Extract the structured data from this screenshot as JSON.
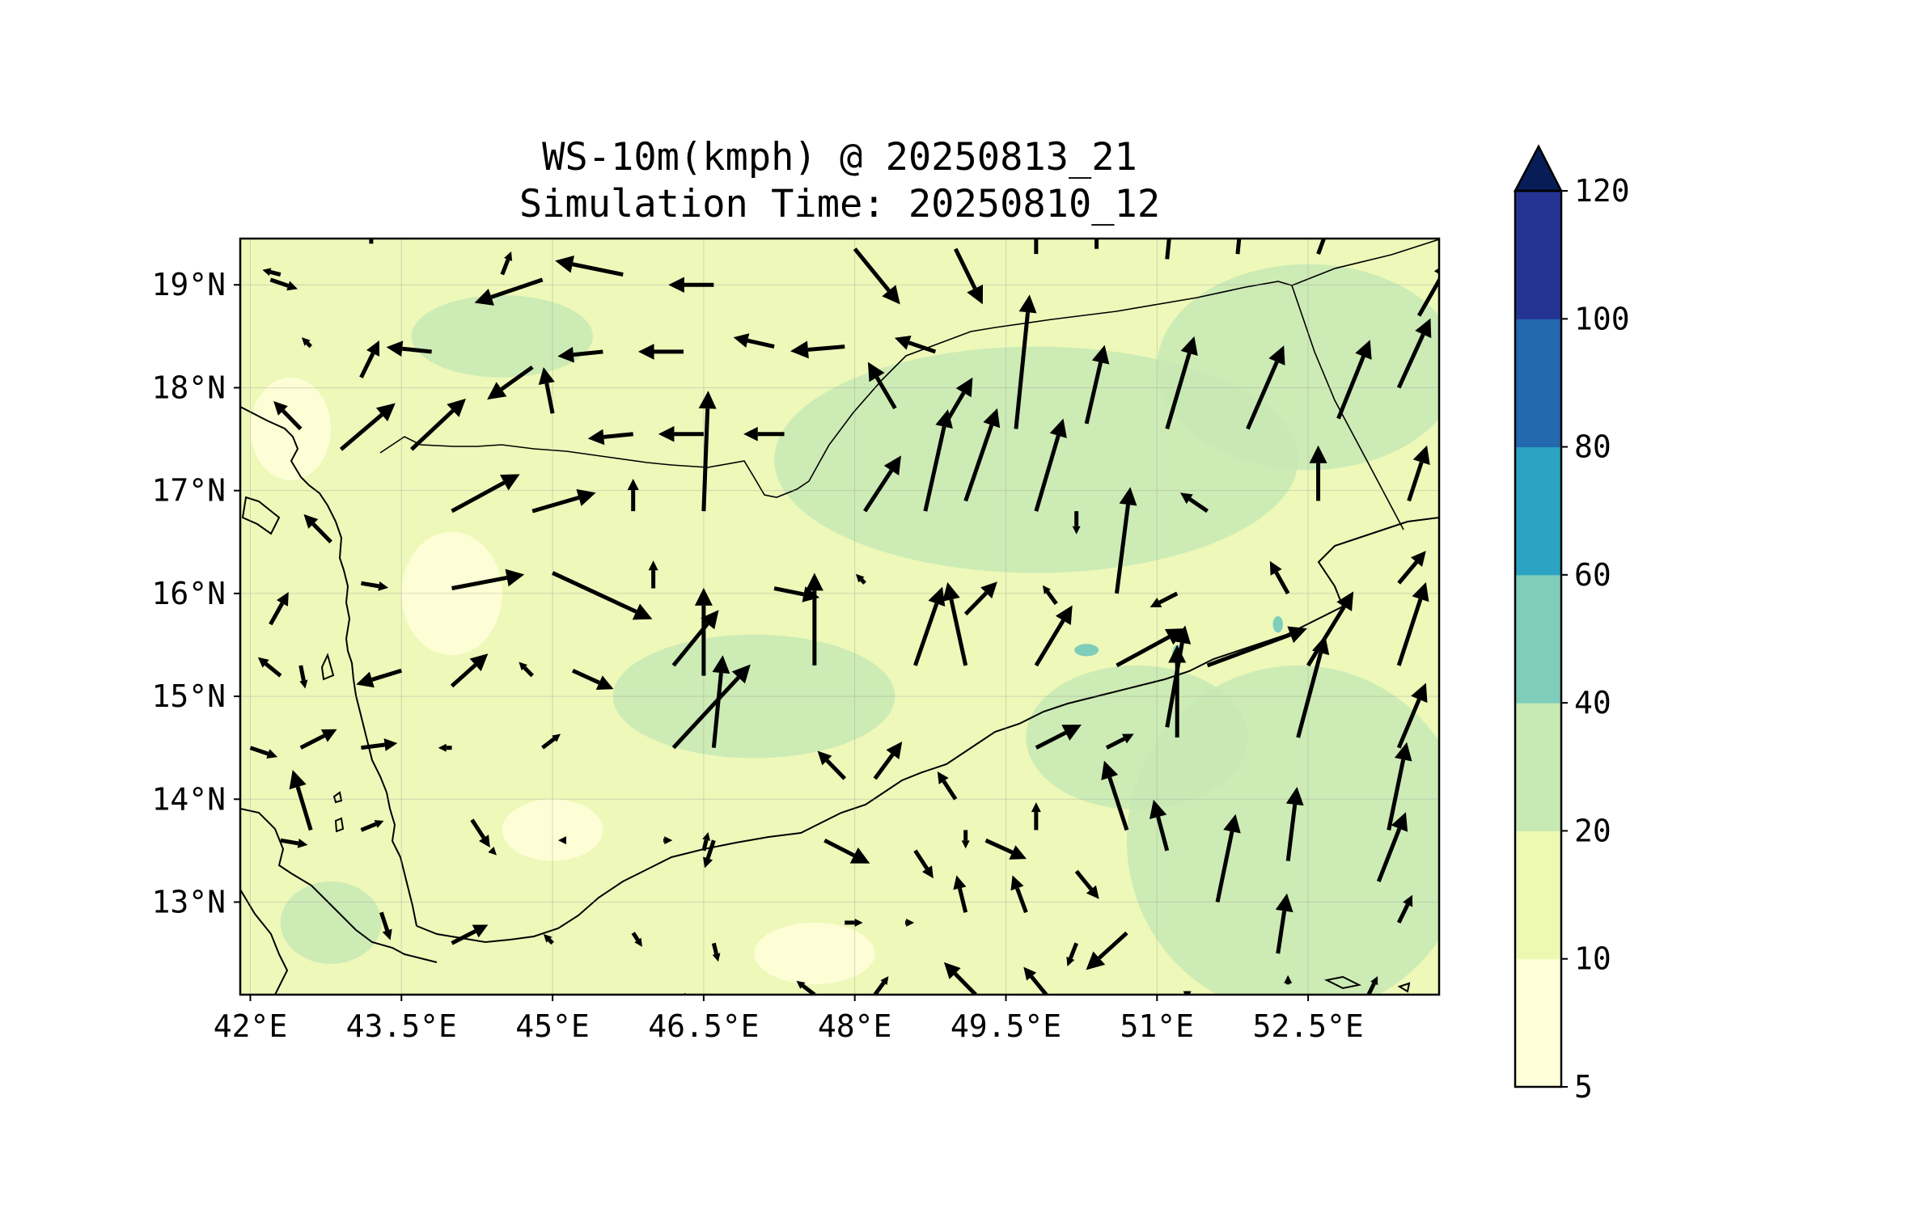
{
  "title": {
    "line1": "WS-10m(kmph) @ 20250813_21",
    "line2": "Simulation Time: 20250810_12"
  },
  "map": {
    "lon_range": [
      41.9,
      53.8
    ],
    "lat_range": [
      12.1,
      19.45
    ],
    "x_ticks": [
      {
        "value": 42.0,
        "label": "42°E"
      },
      {
        "value": 43.5,
        "label": "43.5°E"
      },
      {
        "value": 45.0,
        "label": "45°E"
      },
      {
        "value": 46.5,
        "label": "46.5°E"
      },
      {
        "value": 48.0,
        "label": "48°E"
      },
      {
        "value": 49.5,
        "label": "49.5°E"
      },
      {
        "value": 51.0,
        "label": "51°E"
      },
      {
        "value": 52.5,
        "label": "52.5°E"
      }
    ],
    "y_ticks": [
      {
        "value": 19,
        "label": "19°N"
      },
      {
        "value": 18,
        "label": "18°N"
      },
      {
        "value": 17,
        "label": "17°N"
      },
      {
        "value": 16,
        "label": "16°N"
      },
      {
        "value": 15,
        "label": "15°N"
      },
      {
        "value": 14,
        "label": "14°N"
      },
      {
        "value": 13,
        "label": "13°N"
      }
    ],
    "grid": true,
    "land_base_color": "#edf8b9",
    "wind_zones": [
      {
        "lon": 49.8,
        "lat": 17.3,
        "rx": 2.6,
        "ry": 1.1,
        "level": 2
      },
      {
        "lon": 52.5,
        "lat": 18.2,
        "rx": 1.5,
        "ry": 1.0,
        "level": 2
      },
      {
        "lon": 52.4,
        "lat": 13.6,
        "rx": 1.7,
        "ry": 1.7,
        "level": 2
      },
      {
        "lon": 47.0,
        "lat": 15.0,
        "rx": 1.4,
        "ry": 0.6,
        "level": 2
      },
      {
        "lon": 50.8,
        "lat": 14.6,
        "rx": 1.1,
        "ry": 0.7,
        "level": 2
      },
      {
        "lon": 44.5,
        "lat": 18.5,
        "rx": 0.9,
        "ry": 0.4,
        "level": 2
      },
      {
        "lon": 42.8,
        "lat": 12.8,
        "rx": 0.5,
        "ry": 0.4,
        "level": 2
      },
      {
        "lon": 44.0,
        "lat": 16.0,
        "rx": 0.5,
        "ry": 0.6,
        "level": 0
      },
      {
        "lon": 42.4,
        "lat": 17.6,
        "rx": 0.4,
        "ry": 0.5,
        "level": 0
      },
      {
        "lon": 45.0,
        "lat": 13.7,
        "rx": 0.5,
        "ry": 0.3,
        "level": 0
      },
      {
        "lon": 47.6,
        "lat": 12.5,
        "rx": 0.6,
        "ry": 0.3,
        "level": 0
      },
      {
        "lon": 50.3,
        "lat": 15.45,
        "rx": 0.12,
        "ry": 0.06,
        "level": 3
      },
      {
        "lon": 51.2,
        "lat": 15.4,
        "rx": 0.05,
        "ry": 0.1,
        "level": 3
      },
      {
        "lon": 52.2,
        "lat": 15.7,
        "rx": 0.05,
        "ry": 0.08,
        "level": 3
      }
    ],
    "wind_arrows": [
      [
        42.2,
        19.05,
        0.6,
        -0.2
      ],
      [
        42.3,
        19.1,
        -0.4,
        0.1
      ],
      [
        43.2,
        19.4,
        0.0,
        0.8
      ],
      [
        44.5,
        19.1,
        0.2,
        0.5
      ],
      [
        44.9,
        19.05,
        -1.5,
        -0.5
      ],
      [
        46.6,
        19.0,
        -1.0,
        0.0
      ],
      [
        45.7,
        19.1,
        -1.5,
        0.3
      ],
      [
        48.0,
        19.35,
        1.0,
        -1.2
      ],
      [
        49.0,
        19.35,
        0.6,
        -1.2
      ],
      [
        49.8,
        19.3,
        0.0,
        1.0
      ],
      [
        50.4,
        19.35,
        0.0,
        1.0
      ],
      [
        51.1,
        19.25,
        0.1,
        1.0
      ],
      [
        51.8,
        19.3,
        0.1,
        1.0
      ],
      [
        52.6,
        19.3,
        0.3,
        0.8
      ],
      [
        43.1,
        18.1,
        0.4,
        0.8
      ],
      [
        43.8,
        18.35,
        -1.0,
        0.1
      ],
      [
        44.8,
        18.2,
        -1.0,
        -0.7
      ],
      [
        45.5,
        18.35,
        -1.0,
        -0.1
      ],
      [
        46.3,
        18.35,
        -1.0,
        0.0
      ],
      [
        47.2,
        18.4,
        -0.9,
        0.2
      ],
      [
        47.9,
        18.4,
        -1.2,
        -0.1
      ],
      [
        48.8,
        18.35,
        -0.9,
        0.3
      ],
      [
        42.6,
        18.4,
        -0.2,
        0.2
      ],
      [
        42.9,
        17.4,
        1.2,
        1.0
      ],
      [
        43.6,
        17.4,
        1.2,
        1.1
      ],
      [
        45.0,
        17.75,
        -0.2,
        1.0
      ],
      [
        45.8,
        17.55,
        -1.0,
        -0.1
      ],
      [
        46.5,
        17.55,
        -1.0,
        0.0
      ],
      [
        47.3,
        17.55,
        -0.9,
        0.0
      ],
      [
        48.4,
        17.8,
        -0.6,
        1.0
      ],
      [
        48.9,
        17.65,
        0.6,
        1.0
      ],
      [
        49.6,
        17.6,
        0.3,
        2.9
      ],
      [
        50.3,
        17.65,
        0.4,
        1.7
      ],
      [
        51.1,
        17.6,
        0.6,
        2.0
      ],
      [
        51.9,
        17.6,
        0.8,
        1.8
      ],
      [
        52.8,
        17.7,
        0.7,
        1.7
      ],
      [
        53.4,
        18.0,
        0.7,
        1.5
      ],
      [
        53.6,
        18.7,
        0.7,
        1.2
      ],
      [
        42.5,
        17.6,
        -0.6,
        0.6
      ],
      [
        42.8,
        16.5,
        -0.6,
        0.6
      ],
      [
        44.0,
        16.8,
        1.5,
        0.8
      ],
      [
        44.8,
        16.8,
        1.4,
        0.4
      ],
      [
        45.8,
        16.8,
        0.0,
        0.7
      ],
      [
        46.5,
        16.8,
        0.1,
        2.6
      ],
      [
        48.1,
        16.8,
        0.8,
        1.2
      ],
      [
        48.7,
        16.8,
        0.5,
        2.2
      ],
      [
        49.1,
        16.9,
        0.7,
        2.0
      ],
      [
        49.8,
        16.8,
        0.6,
        2.0
      ],
      [
        50.2,
        16.8,
        0.0,
        -0.5
      ],
      [
        50.6,
        16.0,
        0.3,
        2.3
      ],
      [
        51.5,
        16.8,
        -0.6,
        0.4
      ],
      [
        52.6,
        16.9,
        0.0,
        1.2
      ],
      [
        53.5,
        16.9,
        0.4,
        1.2
      ],
      [
        43.1,
        16.1,
        0.6,
        -0.1
      ],
      [
        44.0,
        16.05,
        1.6,
        0.3
      ],
      [
        45.0,
        16.2,
        2.2,
        -1.0
      ],
      [
        46.0,
        16.05,
        0.0,
        0.6
      ],
      [
        46.5,
        15.2,
        0.0,
        1.9
      ],
      [
        47.6,
        15.3,
        0.0,
        2.0
      ],
      [
        47.2,
        16.05,
        1.0,
        -0.2
      ],
      [
        48.1,
        16.1,
        -0.2,
        0.2
      ],
      [
        48.6,
        15.3,
        0.6,
        1.7
      ],
      [
        49.1,
        15.3,
        -0.4,
        1.8
      ],
      [
        49.1,
        15.8,
        0.7,
        0.7
      ],
      [
        50.0,
        15.9,
        -0.3,
        0.4
      ],
      [
        49.8,
        15.3,
        0.8,
        1.3
      ],
      [
        51.2,
        16.0,
        -0.6,
        -0.3
      ],
      [
        52.3,
        16.0,
        -0.4,
        0.7
      ],
      [
        53.4,
        16.1,
        0.6,
        0.7
      ],
      [
        42.2,
        15.7,
        0.4,
        0.7
      ],
      [
        42.3,
        15.2,
        -0.5,
        0.4
      ],
      [
        42.5,
        15.3,
        0.1,
        -0.5
      ],
      [
        43.5,
        15.25,
        -1.0,
        -0.3
      ],
      [
        44.0,
        15.1,
        0.8,
        0.7
      ],
      [
        44.8,
        15.2,
        -0.3,
        0.3
      ],
      [
        45.2,
        15.25,
        0.9,
        -0.4
      ],
      [
        46.2,
        15.3,
        1.0,
        1.2
      ],
      [
        50.6,
        15.3,
        1.5,
        0.8
      ],
      [
        51.5,
        15.3,
        2.2,
        0.8
      ],
      [
        52.5,
        15.3,
        1.0,
        1.6
      ],
      [
        53.4,
        15.3,
        0.6,
        1.8
      ],
      [
        42.0,
        14.5,
        0.6,
        -0.2
      ],
      [
        42.5,
        14.5,
        0.8,
        0.4
      ],
      [
        43.1,
        14.5,
        0.8,
        0.1
      ],
      [
        44.0,
        14.5,
        -0.3,
        0.0
      ],
      [
        44.9,
        14.5,
        0.4,
        0.3
      ],
      [
        46.2,
        14.5,
        1.7,
        1.8
      ],
      [
        46.6,
        14.5,
        0.2,
        2.0
      ],
      [
        47.9,
        14.2,
        -0.6,
        0.6
      ],
      [
        48.2,
        14.2,
        0.6,
        0.8
      ],
      [
        49.0,
        14.0,
        -0.4,
        0.6
      ],
      [
        49.8,
        14.5,
        1.0,
        0.5
      ],
      [
        50.5,
        14.5,
        0.6,
        0.3
      ],
      [
        51.2,
        14.6,
        0.0,
        2.0
      ],
      [
        51.1,
        14.7,
        0.4,
        2.2
      ],
      [
        52.4,
        14.6,
        0.6,
        2.2
      ],
      [
        53.4,
        14.5,
        0.6,
        1.4
      ],
      [
        50.7,
        13.7,
        -0.5,
        1.5
      ],
      [
        42.3,
        13.6,
        0.6,
        -0.1
      ],
      [
        42.6,
        13.7,
        -0.4,
        1.3
      ],
      [
        43.1,
        13.7,
        0.5,
        0.2
      ],
      [
        44.2,
        13.8,
        0.4,
        -0.6
      ],
      [
        44.4,
        13.5,
        0.1,
        -0.1
      ],
      [
        45.1,
        13.6,
        -0.1,
        0.0
      ],
      [
        46.1,
        13.6,
        0.2,
        0.0
      ],
      [
        46.5,
        13.5,
        0.1,
        0.4
      ],
      [
        46.6,
        13.6,
        -0.2,
        -0.6
      ],
      [
        47.7,
        13.6,
        1.0,
        -0.5
      ],
      [
        48.6,
        13.5,
        0.4,
        -0.6
      ],
      [
        49.1,
        13.7,
        0.0,
        -0.4
      ],
      [
        49.3,
        13.6,
        0.9,
        -0.4
      ],
      [
        49.8,
        13.7,
        0.0,
        0.6
      ],
      [
        50.2,
        13.3,
        0.5,
        -0.6
      ],
      [
        51.1,
        13.5,
        -0.3,
        1.1
      ],
      [
        51.6,
        13.0,
        0.4,
        1.9
      ],
      [
        52.3,
        13.4,
        0.2,
        1.6
      ],
      [
        53.2,
        13.2,
        0.6,
        1.5
      ],
      [
        53.3,
        13.7,
        0.4,
        1.9
      ],
      [
        43.3,
        12.9,
        0.2,
        -0.6
      ],
      [
        44.0,
        12.6,
        0.8,
        0.4
      ],
      [
        45.0,
        12.6,
        -0.2,
        0.2
      ],
      [
        45.8,
        12.7,
        0.2,
        -0.3
      ],
      [
        46.6,
        12.6,
        0.1,
        -0.4
      ],
      [
        47.9,
        12.8,
        0.4,
        0.0
      ],
      [
        48.5,
        12.8,
        0.2,
        0.0
      ],
      [
        49.1,
        12.9,
        -0.2,
        0.8
      ],
      [
        49.7,
        12.9,
        -0.3,
        0.8
      ],
      [
        50.2,
        12.6,
        -0.2,
        -0.5
      ],
      [
        50.7,
        12.7,
        -0.9,
        -0.8
      ],
      [
        52.2,
        12.5,
        0.2,
        1.3
      ],
      [
        53.4,
        12.8,
        0.3,
        0.6
      ],
      [
        46.3,
        12.1,
        0.5,
        -0.3
      ],
      [
        47.6,
        12.1,
        -0.4,
        0.3
      ],
      [
        48.2,
        12.1,
        0.3,
        0.4
      ],
      [
        49.2,
        12.1,
        -0.7,
        0.7
      ],
      [
        49.9,
        12.1,
        -0.5,
        0.6
      ],
      [
        51.3,
        12.1,
        0.0,
        -0.1
      ],
      [
        52.3,
        12.2,
        0.0,
        0.2
      ],
      [
        53.1,
        12.1,
        0.2,
        0.4
      ]
    ]
  },
  "colorbar": {
    "boundaries": [
      5,
      10,
      20,
      40,
      60,
      80,
      100,
      120
    ],
    "labels": [
      "5",
      "10",
      "20",
      "40",
      "60",
      "80",
      "100",
      "120"
    ],
    "colors": [
      "#ffffd9",
      "#edf8b1",
      "#c7e9b4",
      "#7fcdbb",
      "#2ca3c2",
      "#2468ae",
      "#253494"
    ],
    "extend_color": "#081d58",
    "extend": "max"
  }
}
